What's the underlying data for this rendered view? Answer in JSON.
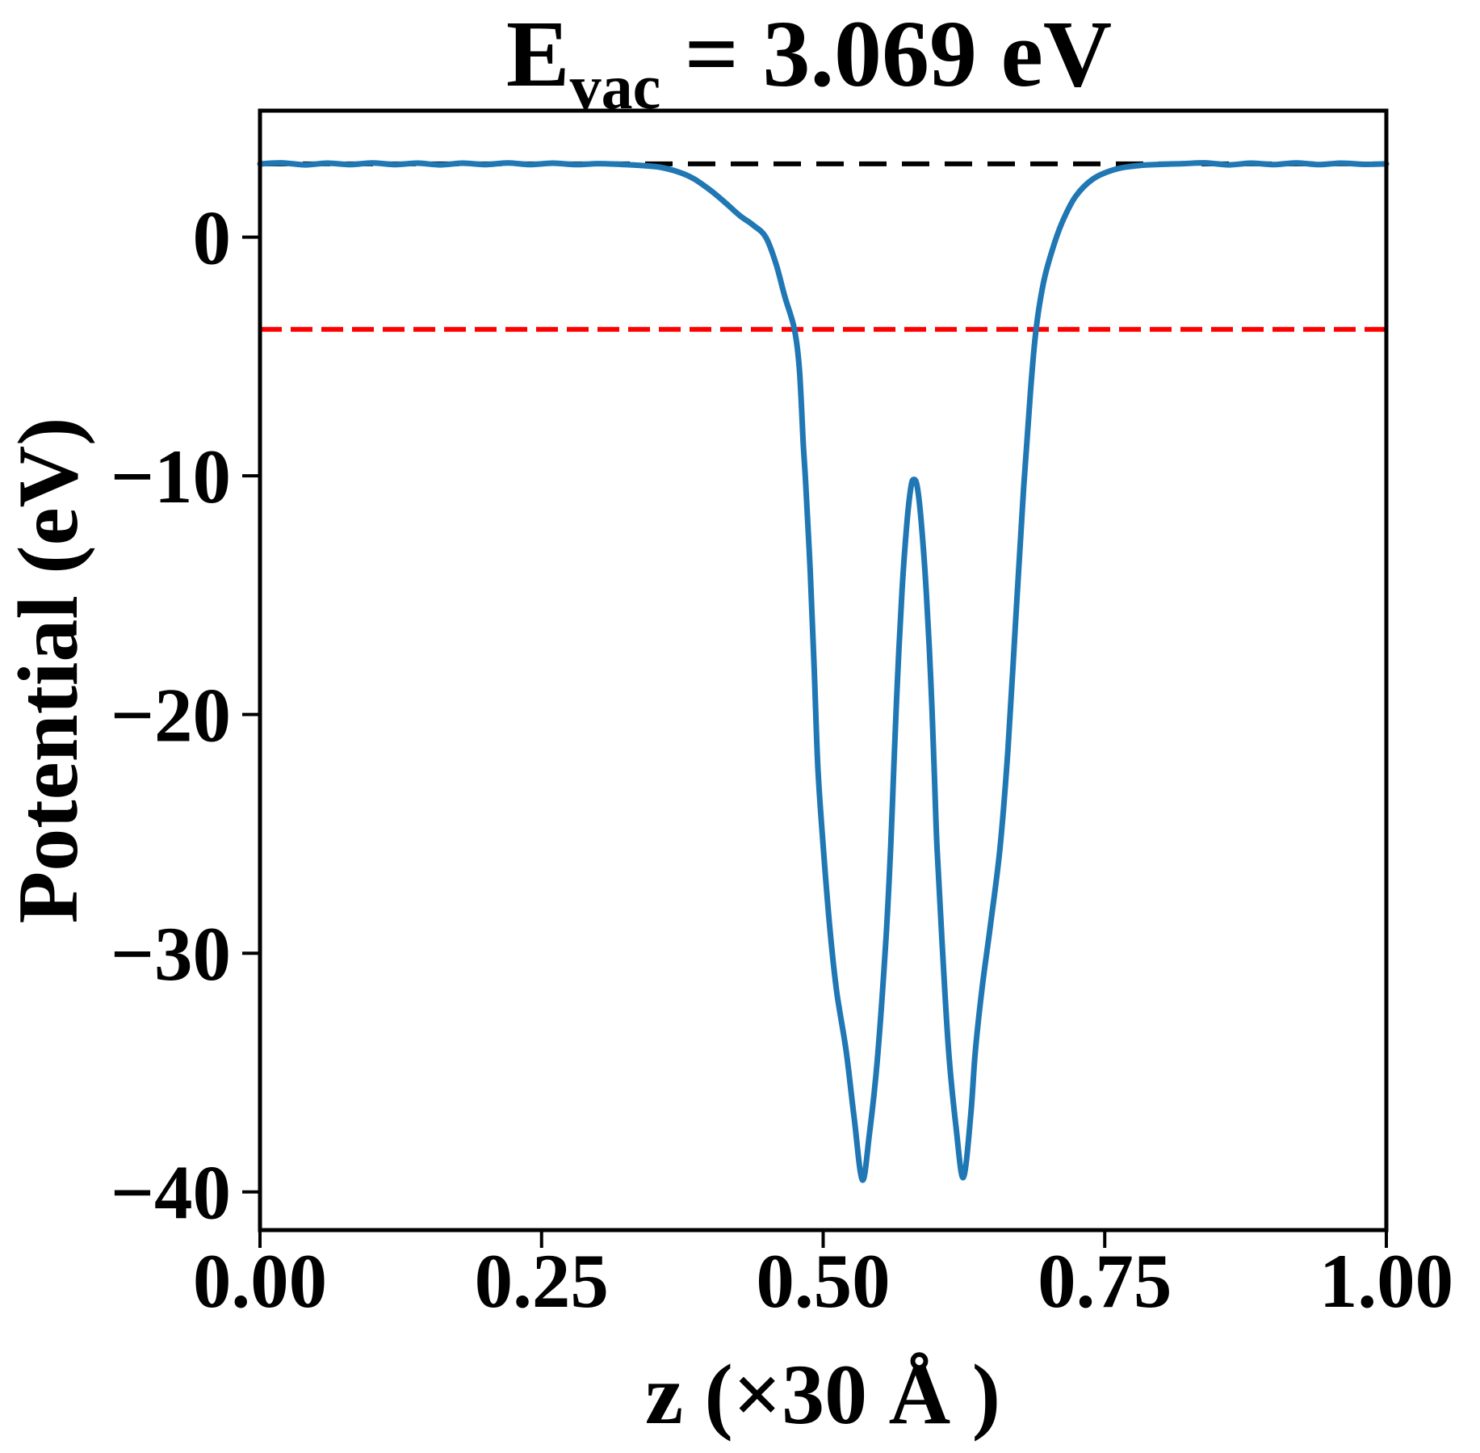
{
  "chart_data": {
    "type": "line",
    "title": {
      "text": "E_vac = 3.069 eV",
      "base": "E",
      "subscript": "vac",
      "rest": " = 3.069 eV"
    },
    "xlabel": "z (×30 Å )",
    "ylabel": "Potential (eV)",
    "xlim": [
      0,
      1
    ],
    "ylim": [
      -41.6,
      5.3
    ],
    "grid": false,
    "legend": "none",
    "x_ticks": {
      "values": [
        0.0,
        0.25,
        0.5,
        0.75,
        1.0
      ],
      "labels": [
        "0.00",
        "0.25",
        "0.50",
        "0.75",
        "1.00"
      ]
    },
    "y_ticks": {
      "values": [
        0,
        -10,
        -20,
        -30,
        -40
      ],
      "labels": [
        "0",
        "−10",
        "−20",
        "−30",
        "−40"
      ]
    },
    "colors": {
      "curve": "#1f77b4",
      "vacuum_line": "#000000",
      "reference_line": "#ff0000",
      "spine": "#000000"
    },
    "vacuum_level_eV": 3.069,
    "reference_level_eV": -3.86,
    "series": [
      {
        "name": "potential-curve",
        "color": "#1f77b4",
        "style": "solid",
        "points": [
          [
            0.0,
            3.07
          ],
          [
            0.02,
            3.11
          ],
          [
            0.04,
            3.03
          ],
          [
            0.06,
            3.1
          ],
          [
            0.08,
            3.04
          ],
          [
            0.1,
            3.11
          ],
          [
            0.12,
            3.04
          ],
          [
            0.14,
            3.1
          ],
          [
            0.16,
            3.03
          ],
          [
            0.18,
            3.1
          ],
          [
            0.2,
            3.04
          ],
          [
            0.22,
            3.11
          ],
          [
            0.24,
            3.04
          ],
          [
            0.26,
            3.1
          ],
          [
            0.28,
            3.04
          ],
          [
            0.3,
            3.08
          ],
          [
            0.32,
            3.05
          ],
          [
            0.34,
            3.0
          ],
          [
            0.355,
            2.93
          ],
          [
            0.371,
            2.74
          ],
          [
            0.385,
            2.45
          ],
          [
            0.4,
            1.96
          ],
          [
            0.413,
            1.45
          ],
          [
            0.426,
            0.9
          ],
          [
            0.438,
            0.5
          ],
          [
            0.449,
            0.0
          ],
          [
            0.458,
            -1.1
          ],
          [
            0.466,
            -2.5
          ],
          [
            0.4745,
            -3.86
          ],
          [
            0.479,
            -5.6
          ],
          [
            0.4824,
            -8.7
          ],
          [
            0.4846,
            -10.4
          ],
          [
            0.4885,
            -14.0
          ],
          [
            0.492,
            -18.0
          ],
          [
            0.4953,
            -22.2
          ],
          [
            0.5,
            -25.5
          ],
          [
            0.506,
            -29.0
          ],
          [
            0.512,
            -31.6
          ],
          [
            0.5204,
            -34.1
          ],
          [
            0.5275,
            -36.9
          ],
          [
            0.5348,
            -39.5
          ],
          [
            0.541,
            -37.6
          ],
          [
            0.548,
            -34.5
          ],
          [
            0.5556,
            -29.5
          ],
          [
            0.56,
            -25.5
          ],
          [
            0.5627,
            -22.2
          ],
          [
            0.566,
            -18.5
          ],
          [
            0.57,
            -14.8
          ],
          [
            0.5745,
            -11.9
          ],
          [
            0.578,
            -10.45
          ],
          [
            0.5806,
            -10.15
          ],
          [
            0.5835,
            -10.45
          ],
          [
            0.587,
            -11.9
          ],
          [
            0.5915,
            -14.8
          ],
          [
            0.5955,
            -18.5
          ],
          [
            0.5985,
            -22.2
          ],
          [
            0.601,
            -25.5
          ],
          [
            0.6055,
            -29.5
          ],
          [
            0.6114,
            -34.1
          ],
          [
            0.618,
            -37.3
          ],
          [
            0.6244,
            -39.4
          ],
          [
            0.631,
            -36.8
          ],
          [
            0.6351,
            -34.1
          ],
          [
            0.641,
            -31.5
          ],
          [
            0.648,
            -29.0
          ],
          [
            0.657,
            -25.6
          ],
          [
            0.664,
            -21.5
          ],
          [
            0.671,
            -16.0
          ],
          [
            0.678,
            -10.5
          ],
          [
            0.684,
            -6.5
          ],
          [
            0.689,
            -3.86
          ],
          [
            0.6955,
            -1.93
          ],
          [
            0.703,
            -0.6
          ],
          [
            0.712,
            0.6
          ],
          [
            0.724,
            1.7
          ],
          [
            0.74,
            2.45
          ],
          [
            0.76,
            2.85
          ],
          [
            0.78,
            3.0
          ],
          [
            0.8,
            3.05
          ],
          [
            0.82,
            3.08
          ],
          [
            0.84,
            3.11
          ],
          [
            0.86,
            3.03
          ],
          [
            0.88,
            3.1
          ],
          [
            0.9,
            3.04
          ],
          [
            0.92,
            3.11
          ],
          [
            0.94,
            3.04
          ],
          [
            0.96,
            3.1
          ],
          [
            0.98,
            3.05
          ],
          [
            1.0,
            3.07
          ]
        ]
      },
      {
        "name": "vacuum-level-line",
        "color": "#000000",
        "style": "dashed",
        "y": 3.069
      },
      {
        "name": "reference-level-line",
        "color": "#ff0000",
        "style": "dashed",
        "y": -3.86
      }
    ],
    "annotations": {
      "well_minima": [
        [
          0.535,
          -39.5
        ],
        [
          0.624,
          -39.4
        ]
      ],
      "central_barrier_top": [
        0.581,
        -10.2
      ]
    }
  }
}
